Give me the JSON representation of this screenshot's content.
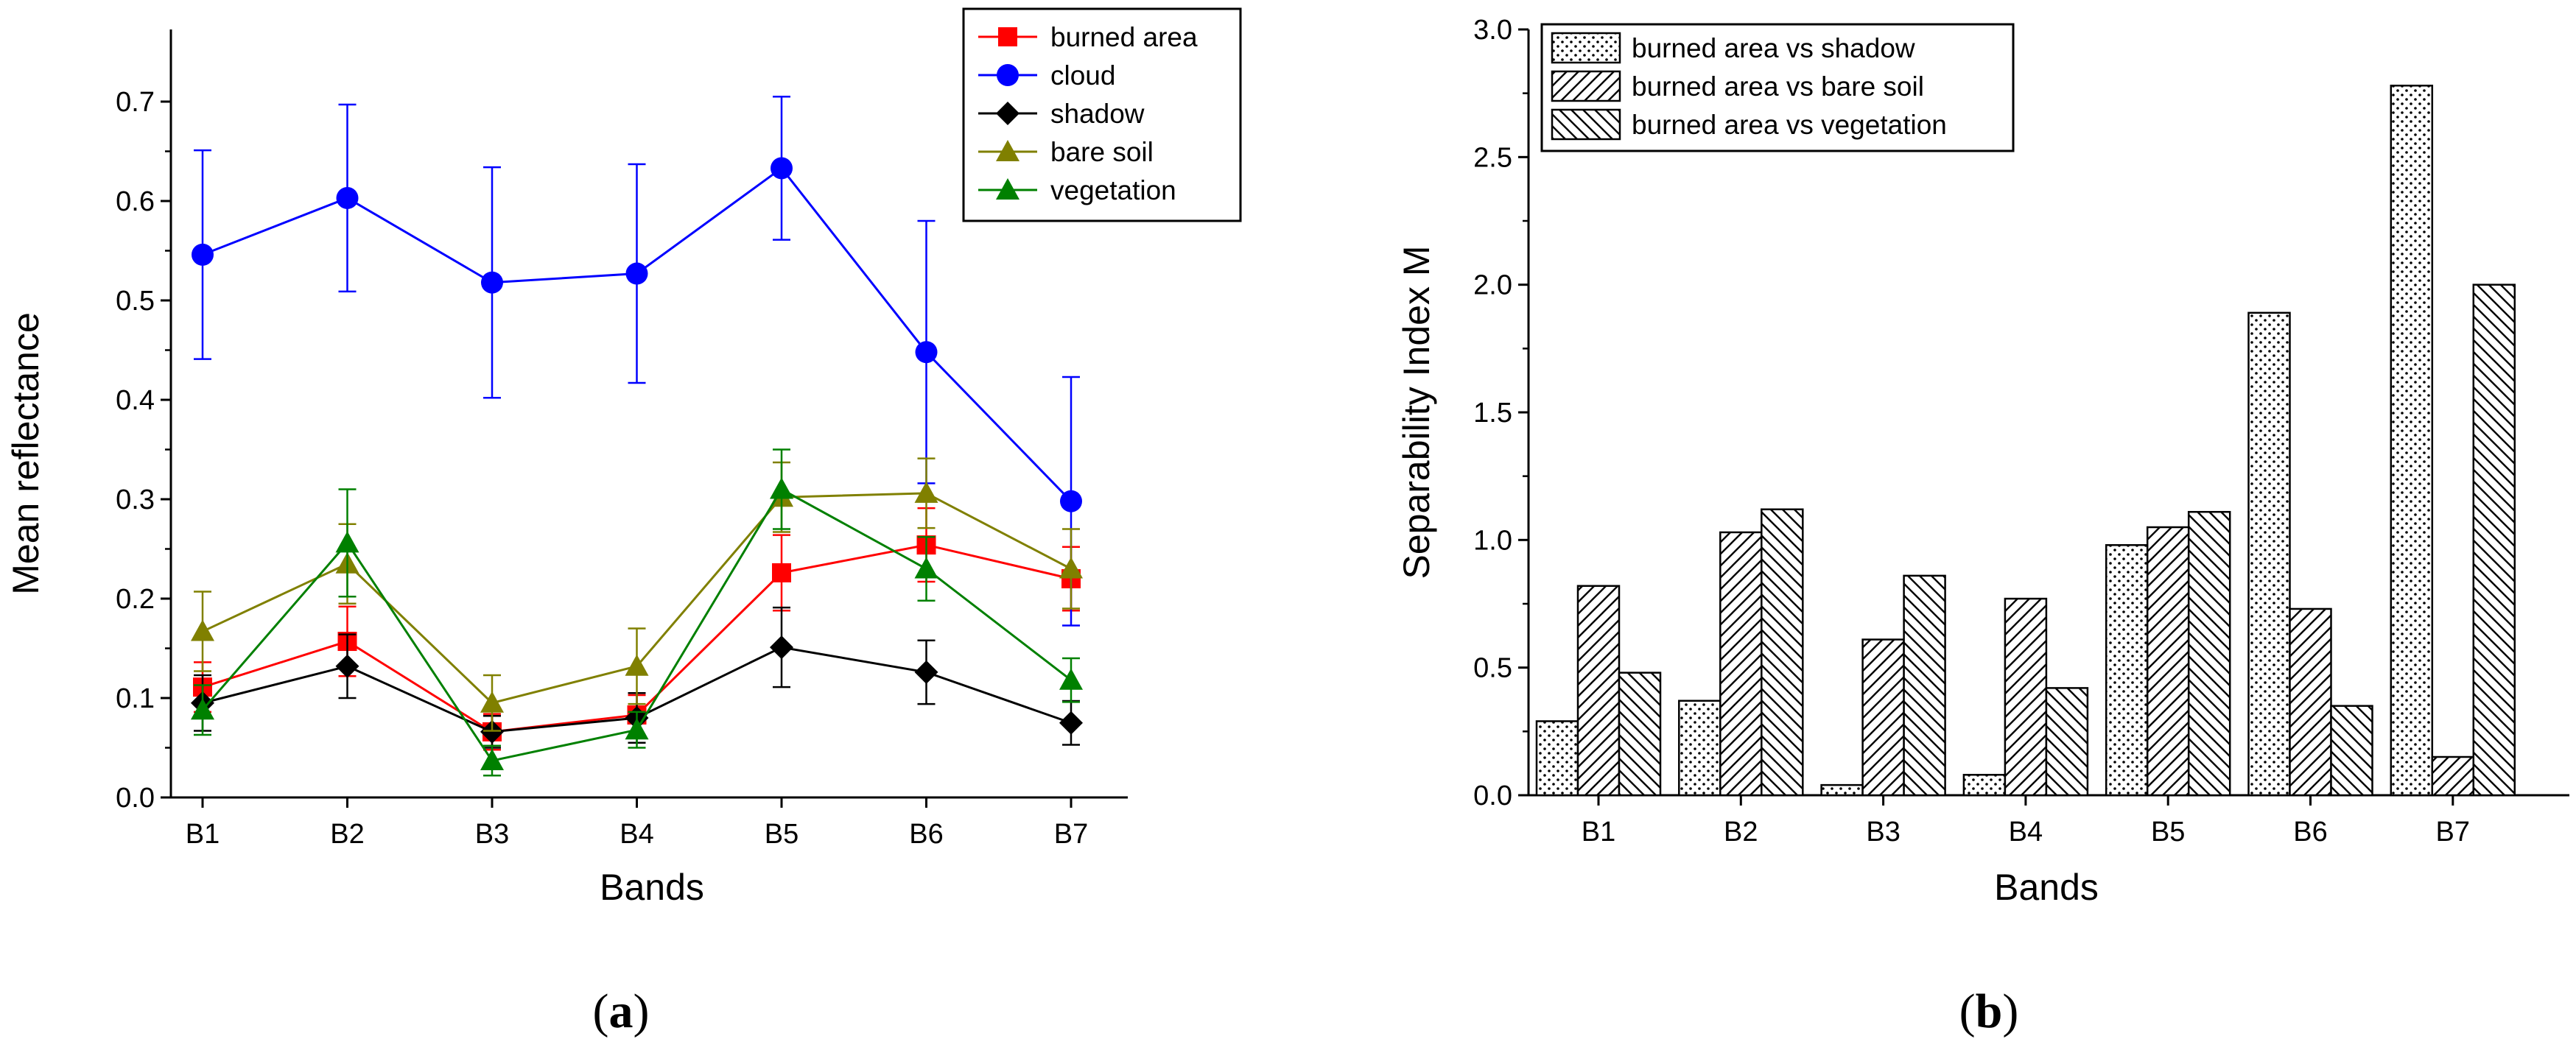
{
  "chart_data": [
    {
      "type": "line",
      "panel_label": "a",
      "xlabel": "Bands",
      "ylabel": "Mean reflectance",
      "categories": [
        "B1",
        "B2",
        "B3",
        "B4",
        "B5",
        "B6",
        "B7"
      ],
      "ylim": [
        0,
        0.75
      ],
      "yticks": [
        "0.0",
        "0.1",
        "0.2",
        "0.3",
        "0.4",
        "0.5",
        "0.6",
        "0.7"
      ],
      "legend_position": "top-right",
      "series": [
        {
          "name": "burned area",
          "color": "#ff0000",
          "marker": "square",
          "values": [
            0.111,
            0.157,
            0.066,
            0.083,
            0.226,
            0.254,
            0.22
          ],
          "errors": [
            0.025,
            0.035,
            0.018,
            0.02,
            0.038,
            0.037,
            0.032
          ]
        },
        {
          "name": "cloud",
          "color": "#0000ff",
          "marker": "circle",
          "values": [
            0.546,
            0.603,
            0.518,
            0.527,
            0.633,
            0.448,
            0.298
          ],
          "errors": [
            0.105,
            0.094,
            0.116,
            0.11,
            0.072,
            0.132,
            0.125
          ]
        },
        {
          "name": "shadow",
          "color": "#000000",
          "marker": "diamond",
          "values": [
            0.095,
            0.132,
            0.066,
            0.08,
            0.151,
            0.126,
            0.075
          ],
          "errors": [
            0.028,
            0.032,
            0.016,
            0.025,
            0.04,
            0.032,
            0.022
          ]
        },
        {
          "name": "bare soil",
          "color": "#808000",
          "marker": "triangle",
          "values": [
            0.167,
            0.235,
            0.095,
            0.132,
            0.302,
            0.306,
            0.23
          ],
          "errors": [
            0.04,
            0.04,
            0.028,
            0.038,
            0.035,
            0.035,
            0.04
          ]
        },
        {
          "name": "vegetation",
          "color": "#008000",
          "marker": "triangle",
          "values": [
            0.088,
            0.256,
            0.037,
            0.068,
            0.31,
            0.23,
            0.118
          ],
          "errors": [
            0.025,
            0.054,
            0.015,
            0.018,
            0.04,
            0.032,
            0.022
          ]
        }
      ]
    },
    {
      "type": "bar",
      "panel_label": "b",
      "xlabel": "Bands",
      "ylabel": "Separability Index M",
      "categories": [
        "B1",
        "B2",
        "B3",
        "B4",
        "B5",
        "B6",
        "B7"
      ],
      "ylim": [
        0,
        3.0
      ],
      "yticks": [
        "0.0",
        "0.5",
        "1.0",
        "1.5",
        "2.0",
        "2.5",
        "3.0"
      ],
      "legend_position": "top-left",
      "series": [
        {
          "name": "burned area vs shadow",
          "pattern": "dots",
          "values": [
            0.29,
            0.37,
            0.04,
            0.08,
            0.98,
            1.89,
            2.78
          ]
        },
        {
          "name": "burned area vs bare soil",
          "pattern": "forward-hatch",
          "values": [
            0.82,
            1.03,
            0.61,
            0.77,
            1.05,
            0.73,
            0.15
          ]
        },
        {
          "name": "burned area vs vegetation",
          "pattern": "back-hatch",
          "values": [
            0.48,
            1.12,
            0.86,
            0.42,
            1.11,
            0.35,
            2.0
          ]
        }
      ]
    }
  ]
}
